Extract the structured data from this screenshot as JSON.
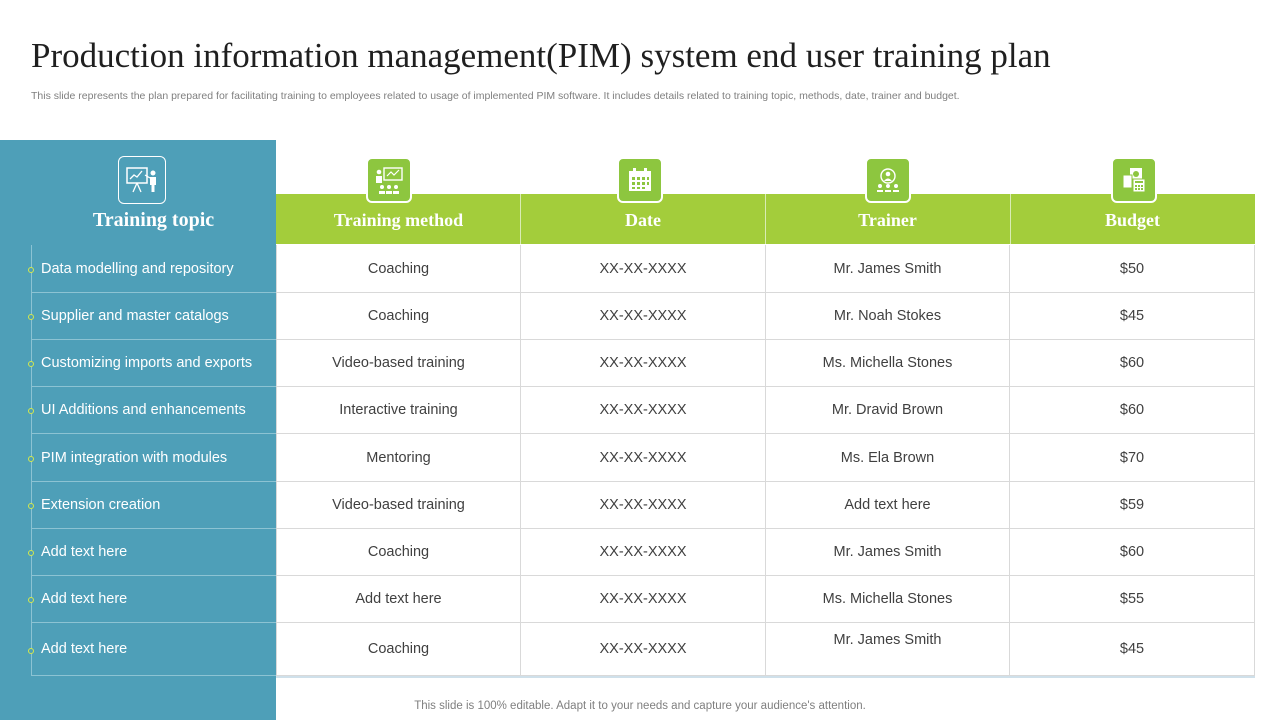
{
  "title": "Production information management(PIM) system end user training plan",
  "subtitle": "This slide represents the plan prepared for facilitating training to employees related to usage of implemented PIM software. It includes details related to training topic, methods, date, trainer and budget.",
  "headers": {
    "topic": "Training topic",
    "method": "Training method",
    "date": "Date",
    "trainer": "Trainer",
    "budget": "Budget"
  },
  "icons": {
    "topic": "presentation-icon",
    "method": "classroom-icon",
    "date": "calendar-icon",
    "trainer": "trainer-icon",
    "budget": "budget-icon"
  },
  "colors": {
    "left_panel": "#4e9fb8",
    "header_band": "#a3cd3b",
    "icon_tile": "#8dc63f"
  },
  "rows": [
    {
      "topic": "Data modelling and repository",
      "method": "Coaching",
      "date": "XX-XX-XXXX",
      "trainer": "Mr. James Smith",
      "budget": "$50"
    },
    {
      "topic": "Supplier and master catalogs",
      "method": "Coaching",
      "date": "XX-XX-XXXX",
      "trainer": "Mr. Noah Stokes",
      "budget": "$45"
    },
    {
      "topic": "Customizing imports and exports",
      "method": "Video-based training",
      "date": "XX-XX-XXXX",
      "trainer": "Ms. Michella Stones",
      "budget": "$60"
    },
    {
      "topic": "UI Additions and enhancements",
      "method": "Interactive training",
      "date": "XX-XX-XXXX",
      "trainer": "Mr. Dravid Brown",
      "budget": "$60"
    },
    {
      "topic": "PIM integration with modules",
      "method": "Mentoring",
      "date": "XX-XX-XXXX",
      "trainer": "Ms. Ela Brown",
      "budget": "$70"
    },
    {
      "topic": "Extension creation",
      "method": "Video-based training",
      "date": "XX-XX-XXXX",
      "trainer": "Add text here",
      "budget": "$59"
    },
    {
      "topic": "Add text here",
      "method": "Coaching",
      "date": "XX-XX-XXXX",
      "trainer": "Mr. James Smith",
      "budget": "$60"
    },
    {
      "topic": "Add text here",
      "method": "Add text here",
      "date": "XX-XX-XXXX",
      "trainer": "Ms. Michella Stones",
      "budget": "$55"
    },
    {
      "topic": "Add text here",
      "method": "Coaching",
      "date": "XX-XX-XXXX",
      "trainer": "Mr. James Smith",
      "budget": "$45"
    }
  ],
  "footer": "This slide is 100% editable. Adapt it to your needs and capture your audience's attention."
}
